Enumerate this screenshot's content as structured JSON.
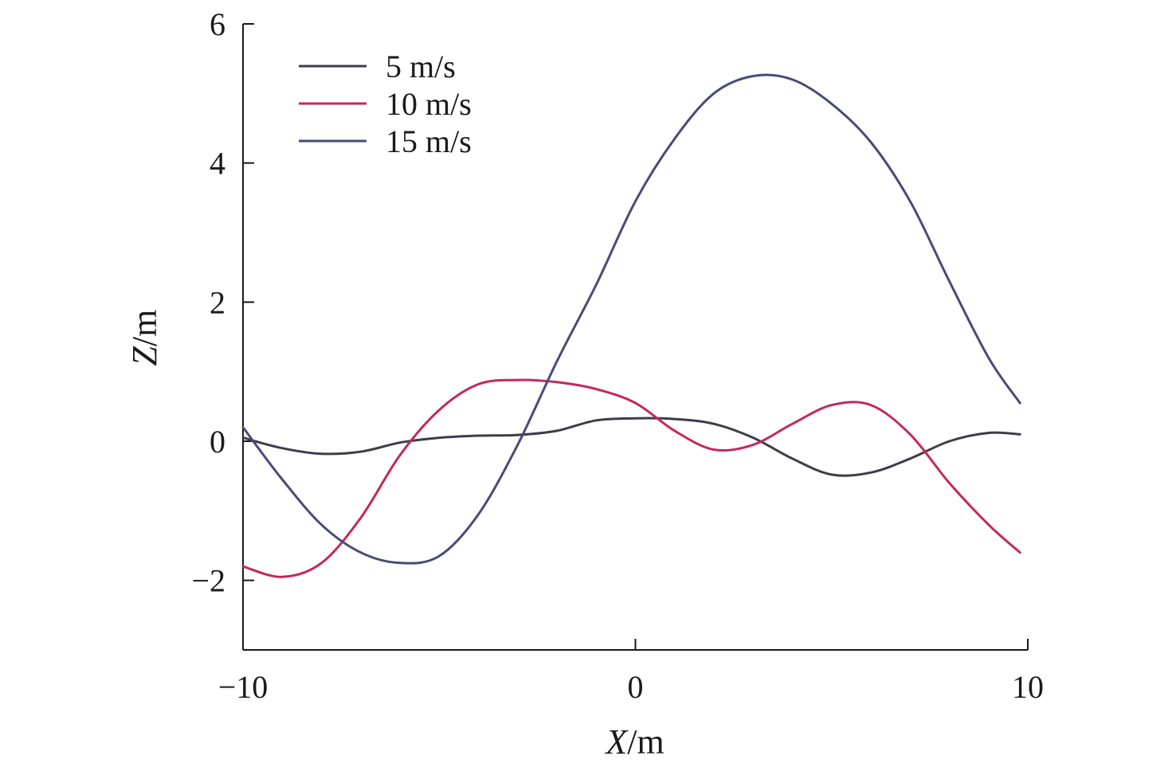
{
  "chart_data": {
    "type": "line",
    "xlabel_var": "X",
    "xlabel_unit": "/m",
    "ylabel_var": "Z",
    "ylabel_unit": "/m",
    "xlim": [
      -10,
      10
    ],
    "ylim": [
      -3,
      6
    ],
    "xticks": [
      -10,
      0,
      10
    ],
    "xtick_labels": [
      "−10",
      "0",
      "10"
    ],
    "yticks": [
      -2,
      0,
      2,
      4,
      6
    ],
    "ytick_labels": [
      "−2",
      "0",
      "2",
      "4",
      "6"
    ],
    "grid": false,
    "legend_position": "top-left",
    "series": [
      {
        "name": "5 m/s",
        "color": "#3d3d4a",
        "x": [
          -10,
          -9,
          -8,
          -7,
          -6,
          -5,
          -4,
          -3,
          -2,
          -1,
          0,
          1,
          2,
          3,
          4,
          5,
          6,
          7,
          8,
          9,
          9.8
        ],
        "y": [
          0.05,
          -0.1,
          -0.18,
          -0.15,
          -0.02,
          0.05,
          0.08,
          0.09,
          0.15,
          0.3,
          0.33,
          0.32,
          0.25,
          0.05,
          -0.25,
          -0.48,
          -0.45,
          -0.25,
          0.0,
          0.12,
          0.1
        ]
      },
      {
        "name": "10 m/s",
        "color": "#c4285a",
        "x": [
          -10,
          -9,
          -8,
          -7,
          -6,
          -5,
          -4,
          -3,
          -2,
          -1,
          0,
          1,
          2,
          3,
          4,
          5,
          6,
          7,
          8,
          9,
          9.8
        ],
        "y": [
          -1.8,
          -1.95,
          -1.75,
          -1.1,
          -0.2,
          0.45,
          0.82,
          0.88,
          0.85,
          0.75,
          0.55,
          0.15,
          -0.12,
          -0.05,
          0.25,
          0.52,
          0.52,
          0.1,
          -0.6,
          -1.2,
          -1.6
        ]
      },
      {
        "name": "15 m/s",
        "color": "#4a4a78",
        "x": [
          -10,
          -9,
          -8,
          -7,
          -6,
          -5,
          -4,
          -3,
          -2,
          -1,
          0,
          1,
          2,
          3,
          4,
          5,
          6,
          7,
          8,
          9,
          9.8
        ],
        "y": [
          0.2,
          -0.55,
          -1.2,
          -1.6,
          -1.75,
          -1.65,
          -1.05,
          -0.05,
          1.15,
          2.25,
          3.45,
          4.35,
          5.0,
          5.25,
          5.2,
          4.85,
          4.3,
          3.45,
          2.3,
          1.2,
          0.55
        ]
      }
    ]
  }
}
